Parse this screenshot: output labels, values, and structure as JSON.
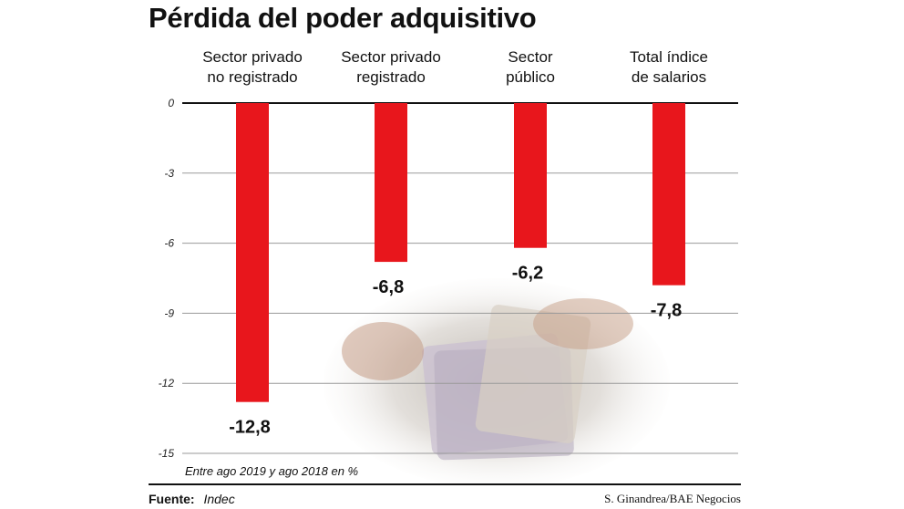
{
  "title": "Pérdida del poder adquisitivo",
  "chart_data": {
    "type": "bar",
    "title": "Pérdida del poder adquisitivo",
    "categories": [
      [
        "Sector privado",
        "no registrado"
      ],
      [
        "Sector privado",
        "registrado"
      ],
      [
        "Sector",
        "público"
      ],
      [
        "Total índice",
        "de salarios"
      ]
    ],
    "values": [
      -12.8,
      -6.8,
      -6.2,
      -7.8
    ],
    "value_labels": [
      "-12,8",
      "-6,8",
      "-6,2",
      "-7,8"
    ],
    "ylim": [
      -15,
      0
    ],
    "yticks": [
      0,
      -3,
      -6,
      -9,
      -12,
      -15
    ],
    "ytick_labels": [
      "0",
      "-3",
      "-6",
      "-9",
      "-12",
      "-15"
    ],
    "grid": true,
    "bar_color": "#e8161c",
    "note": "Entre ago 2019 y ago 2018 en %"
  },
  "footer": {
    "source_label": "Fuente:",
    "source_value": "Indec",
    "credit": "S. Ginandrea/BAE Negocios"
  }
}
